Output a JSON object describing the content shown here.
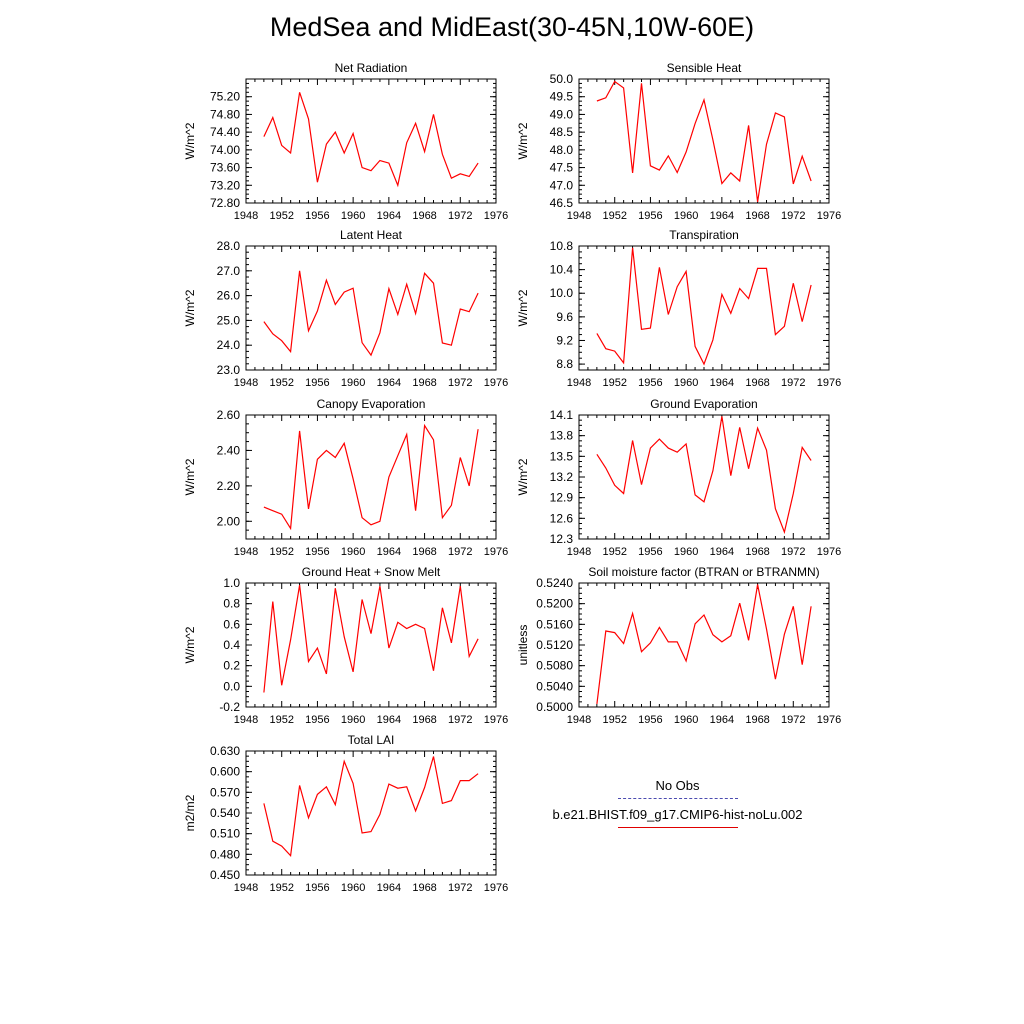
{
  "title": "MedSea and MidEast(30-45N,10W-60E)",
  "colors": {
    "series": "#ff0000",
    "obs": "#4b4bb0"
  },
  "legend": {
    "obs_label": "No Obs",
    "model_label": "b.e21.BHIST.f09_g17.CMIP6-hist-noLu.002"
  },
  "chart_data": [
    {
      "type": "line",
      "title": "Net Radiation",
      "ylabel": "W/m^2",
      "xlim": [
        1948,
        1976
      ],
      "ylim": [
        72.8,
        75.6
      ],
      "xticks": [
        "1948",
        "1952",
        "1956",
        "1960",
        "1964",
        "1968",
        "1972",
        "1976"
      ],
      "yticks": [
        "72.80",
        "73.20",
        "73.60",
        "74.00",
        "74.40",
        "74.80",
        "75.20"
      ],
      "x": [
        1950,
        1951,
        1952,
        1953,
        1954,
        1955,
        1956,
        1957,
        1958,
        1959,
        1960,
        1961,
        1962,
        1963,
        1964,
        1965,
        1966,
        1967,
        1968,
        1969,
        1970,
        1971,
        1972,
        1973,
        1974
      ],
      "values": [
        74.3,
        74.73,
        74.1,
        73.93,
        75.3,
        74.7,
        73.27,
        74.13,
        74.4,
        73.93,
        74.37,
        73.6,
        73.53,
        73.76,
        73.7,
        73.2,
        74.16,
        74.6,
        73.96,
        74.8,
        73.9,
        73.36,
        73.46,
        73.4,
        73.7
      ]
    },
    {
      "type": "line",
      "title": "Sensible Heat",
      "ylabel": "W/m^2",
      "xlim": [
        1948,
        1976
      ],
      "ylim": [
        46.5,
        50.0
      ],
      "xticks": [
        "1948",
        "1952",
        "1956",
        "1960",
        "1964",
        "1968",
        "1972",
        "1976"
      ],
      "yticks": [
        "46.5",
        "47.0",
        "47.5",
        "48.0",
        "48.5",
        "49.0",
        "49.5",
        "50.0"
      ],
      "x": [
        1950,
        1951,
        1952,
        1953,
        1954,
        1955,
        1956,
        1957,
        1958,
        1959,
        1960,
        1961,
        1962,
        1963,
        1964,
        1965,
        1966,
        1967,
        1968,
        1969,
        1970,
        1971,
        1972,
        1973,
        1974
      ],
      "values": [
        49.38,
        49.47,
        49.93,
        49.75,
        47.35,
        49.88,
        47.55,
        47.43,
        47.83,
        47.36,
        47.94,
        48.74,
        49.41,
        48.28,
        47.05,
        47.35,
        47.12,
        48.69,
        46.53,
        48.16,
        49.04,
        48.93,
        47.04,
        47.82,
        47.12
      ]
    },
    {
      "type": "line",
      "title": "Latent Heat",
      "ylabel": "W/m^2",
      "xlim": [
        1948,
        1976
      ],
      "ylim": [
        23.0,
        28.0
      ],
      "xticks": [
        "1948",
        "1952",
        "1956",
        "1960",
        "1964",
        "1968",
        "1972",
        "1976"
      ],
      "yticks": [
        "23.0",
        "24.0",
        "25.0",
        "26.0",
        "27.0",
        "28.0"
      ],
      "x": [
        1950,
        1951,
        1952,
        1953,
        1954,
        1955,
        1956,
        1957,
        1958,
        1959,
        1960,
        1961,
        1962,
        1963,
        1964,
        1965,
        1966,
        1967,
        1968,
        1969,
        1970,
        1971,
        1972,
        1973,
        1974
      ],
      "values": [
        24.95,
        24.46,
        24.18,
        23.74,
        27.0,
        24.58,
        25.38,
        26.62,
        25.64,
        26.14,
        26.3,
        24.1,
        23.6,
        24.5,
        26.28,
        25.24,
        26.46,
        25.28,
        26.9,
        26.5,
        24.09,
        24.0,
        25.46,
        25.35,
        26.1
      ]
    },
    {
      "type": "line",
      "title": "Transpiration",
      "ylabel": "W/m^2",
      "xlim": [
        1948,
        1976
      ],
      "ylim": [
        8.7,
        10.8
      ],
      "xticks": [
        "1948",
        "1952",
        "1956",
        "1960",
        "1964",
        "1968",
        "1972",
        "1976"
      ],
      "yticks": [
        "8.8",
        "9.2",
        "9.6",
        "10.0",
        "10.4",
        "10.8"
      ],
      "x": [
        1950,
        1951,
        1952,
        1953,
        1954,
        1955,
        1956,
        1957,
        1958,
        1959,
        1960,
        1961,
        1962,
        1963,
        1964,
        1965,
        1966,
        1967,
        1968,
        1969,
        1970,
        1971,
        1972,
        1973,
        1974
      ],
      "values": [
        9.32,
        9.06,
        9.02,
        8.82,
        10.77,
        9.39,
        9.41,
        10.44,
        9.64,
        10.11,
        10.37,
        9.1,
        8.8,
        9.21,
        9.98,
        9.66,
        10.08,
        9.91,
        10.42,
        10.42,
        9.3,
        9.44,
        10.17,
        9.52,
        10.14
      ]
    },
    {
      "type": "line",
      "title": "Canopy Evaporation",
      "ylabel": "W/m^2",
      "xlim": [
        1948,
        1976
      ],
      "ylim": [
        1.9,
        2.6
      ],
      "xticks": [
        "1948",
        "1952",
        "1956",
        "1960",
        "1964",
        "1968",
        "1972",
        "1976"
      ],
      "yticks": [
        "2.00",
        "2.20",
        "2.40",
        "2.60"
      ],
      "x": [
        1950,
        1951,
        1952,
        1953,
        1954,
        1955,
        1956,
        1957,
        1958,
        1959,
        1960,
        1961,
        1962,
        1963,
        1964,
        1965,
        1966,
        1967,
        1968,
        1969,
        1970,
        1971,
        1972,
        1973,
        1974
      ],
      "values": [
        2.08,
        2.06,
        2.04,
        1.96,
        2.51,
        2.07,
        2.35,
        2.4,
        2.36,
        2.44,
        2.24,
        2.02,
        1.98,
        2.0,
        2.25,
        2.37,
        2.49,
        2.06,
        2.54,
        2.46,
        2.02,
        2.09,
        2.36,
        2.2,
        2.52
      ]
    },
    {
      "type": "line",
      "title": "Ground Evaporation",
      "ylabel": "W/m^2",
      "xlim": [
        1948,
        1976
      ],
      "ylim": [
        12.3,
        14.1
      ],
      "xticks": [
        "1948",
        "1952",
        "1956",
        "1960",
        "1964",
        "1968",
        "1972",
        "1976"
      ],
      "yticks": [
        "12.3",
        "12.6",
        "12.9",
        "13.2",
        "13.5",
        "13.8",
        "14.1"
      ],
      "x": [
        1950,
        1951,
        1952,
        1953,
        1954,
        1955,
        1956,
        1957,
        1958,
        1959,
        1960,
        1961,
        1962,
        1963,
        1964,
        1965,
        1966,
        1967,
        1968,
        1969,
        1970,
        1971,
        1972,
        1973,
        1974
      ],
      "values": [
        13.53,
        13.33,
        13.08,
        12.96,
        13.73,
        13.09,
        13.62,
        13.75,
        13.62,
        13.56,
        13.68,
        12.94,
        12.84,
        13.29,
        14.08,
        13.22,
        13.92,
        13.32,
        13.91,
        13.59,
        12.74,
        12.4,
        12.96,
        13.63,
        13.44
      ]
    },
    {
      "type": "line",
      "title": "Ground Heat + Snow Melt",
      "ylabel": "W/m^2",
      "xlim": [
        1948,
        1976
      ],
      "ylim": [
        -0.2,
        1.0
      ],
      "xticks": [
        "1948",
        "1952",
        "1956",
        "1960",
        "1964",
        "1968",
        "1972",
        "1976"
      ],
      "yticks": [
        "-0.2",
        "0.0",
        "0.2",
        "0.4",
        "0.6",
        "0.8",
        "1.0"
      ],
      "x": [
        1950,
        1951,
        1952,
        1953,
        1954,
        1955,
        1956,
        1957,
        1958,
        1959,
        1960,
        1961,
        1962,
        1963,
        1964,
        1965,
        1966,
        1967,
        1968,
        1969,
        1970,
        1971,
        1972,
        1973,
        1974
      ],
      "values": [
        -0.06,
        0.82,
        0.01,
        0.45,
        0.98,
        0.24,
        0.37,
        0.12,
        0.95,
        0.48,
        0.14,
        0.84,
        0.51,
        0.97,
        0.37,
        0.62,
        0.56,
        0.6,
        0.56,
        0.15,
        0.76,
        0.42,
        0.97,
        0.29,
        0.46
      ]
    },
    {
      "type": "line",
      "title": "Soil moisture factor (BTRAN or BTRANMN)",
      "ylabel": "unitless",
      "xlim": [
        1948,
        1976
      ],
      "ylim": [
        0.5,
        0.524
      ],
      "xticks": [
        "1948",
        "1952",
        "1956",
        "1960",
        "1964",
        "1968",
        "1972",
        "1976"
      ],
      "yticks": [
        "0.5000",
        "0.5040",
        "0.5080",
        "0.5120",
        "0.5160",
        "0.5200",
        "0.5240"
      ],
      "x": [
        1950,
        1951,
        1952,
        1953,
        1954,
        1955,
        1956,
        1957,
        1958,
        1959,
        1960,
        1961,
        1962,
        1963,
        1964,
        1965,
        1966,
        1967,
        1968,
        1969,
        1970,
        1971,
        1972,
        1973,
        1974
      ],
      "values": [
        0.5006,
        0.5147,
        0.5144,
        0.5123,
        0.5181,
        0.5107,
        0.5124,
        0.5154,
        0.5126,
        0.5126,
        0.5089,
        0.5161,
        0.5178,
        0.514,
        0.5126,
        0.5138,
        0.5201,
        0.5129,
        0.5237,
        0.5151,
        0.5054,
        0.5141,
        0.5195,
        0.5082,
        0.5195
      ]
    },
    {
      "type": "line",
      "title": "Total LAI",
      "ylabel": "m2/m2",
      "xlim": [
        1948,
        1976
      ],
      "ylim": [
        0.45,
        0.63
      ],
      "xticks": [
        "1948",
        "1952",
        "1956",
        "1960",
        "1964",
        "1968",
        "1972",
        "1976"
      ],
      "yticks": [
        "0.450",
        "0.480",
        "0.510",
        "0.540",
        "0.570",
        "0.600",
        "0.630"
      ],
      "x": [
        1950,
        1951,
        1952,
        1953,
        1954,
        1955,
        1956,
        1957,
        1958,
        1959,
        1960,
        1961,
        1962,
        1963,
        1964,
        1965,
        1966,
        1967,
        1968,
        1969,
        1970,
        1971,
        1972,
        1973,
        1974
      ],
      "values": [
        0.554,
        0.499,
        0.492,
        0.478,
        0.58,
        0.533,
        0.567,
        0.578,
        0.552,
        0.615,
        0.583,
        0.511,
        0.513,
        0.538,
        0.582,
        0.576,
        0.578,
        0.543,
        0.577,
        0.622,
        0.554,
        0.558,
        0.587,
        0.587,
        0.597
      ]
    }
  ]
}
